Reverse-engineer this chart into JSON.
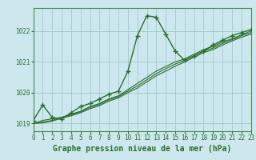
{
  "title": "Graphe pression niveau de la mer (hPa)",
  "bg_color": "#cce8ee",
  "grid_color": "#a0c8d0",
  "line_color": "#2d6e2d",
  "xlim": [
    0,
    23
  ],
  "ylim": [
    1018.75,
    1022.75
  ],
  "yticks": [
    1019,
    1020,
    1021,
    1022
  ],
  "xticks": [
    0,
    1,
    2,
    3,
    4,
    5,
    6,
    7,
    8,
    9,
    10,
    11,
    12,
    13,
    14,
    15,
    16,
    17,
    18,
    19,
    20,
    21,
    22,
    23
  ],
  "series_main": [
    1019.1,
    1019.6,
    1019.2,
    1019.15,
    1019.35,
    1019.55,
    1019.65,
    1019.8,
    1019.95,
    1020.05,
    1020.7,
    1021.85,
    1022.5,
    1022.45,
    1021.9,
    1021.35,
    1021.05,
    1021.2,
    1021.35,
    1021.55,
    1021.7,
    1021.85,
    1021.95,
    1022.05
  ],
  "series_others": [
    [
      1019.0,
      1019.1,
      1019.15,
      1019.2,
      1019.3,
      1019.4,
      1019.55,
      1019.65,
      1019.8,
      1019.9,
      1020.1,
      1020.3,
      1020.5,
      1020.7,
      1020.85,
      1021.0,
      1021.1,
      1021.25,
      1021.4,
      1021.5,
      1021.65,
      1021.75,
      1021.88,
      1022.0
    ],
    [
      1019.0,
      1019.05,
      1019.1,
      1019.2,
      1019.28,
      1019.38,
      1019.52,
      1019.62,
      1019.77,
      1019.87,
      1020.05,
      1020.22,
      1020.42,
      1020.62,
      1020.78,
      1020.93,
      1021.05,
      1021.2,
      1021.35,
      1021.45,
      1021.6,
      1021.72,
      1021.85,
      1021.95
    ],
    [
      1019.0,
      1019.02,
      1019.08,
      1019.17,
      1019.25,
      1019.35,
      1019.48,
      1019.58,
      1019.73,
      1019.83,
      1020.0,
      1020.15,
      1020.35,
      1020.55,
      1020.7,
      1020.86,
      1021.0,
      1021.15,
      1021.3,
      1021.4,
      1021.55,
      1021.68,
      1021.8,
      1021.9
    ]
  ],
  "marker_size": 4,
  "line_width": 1.0,
  "tick_fontsize": 5.5,
  "label_fontsize": 7,
  "tick_color": "#2d6e2d",
  "axis_color": "#2d6e2d",
  "border_color": "#4a8a4a"
}
